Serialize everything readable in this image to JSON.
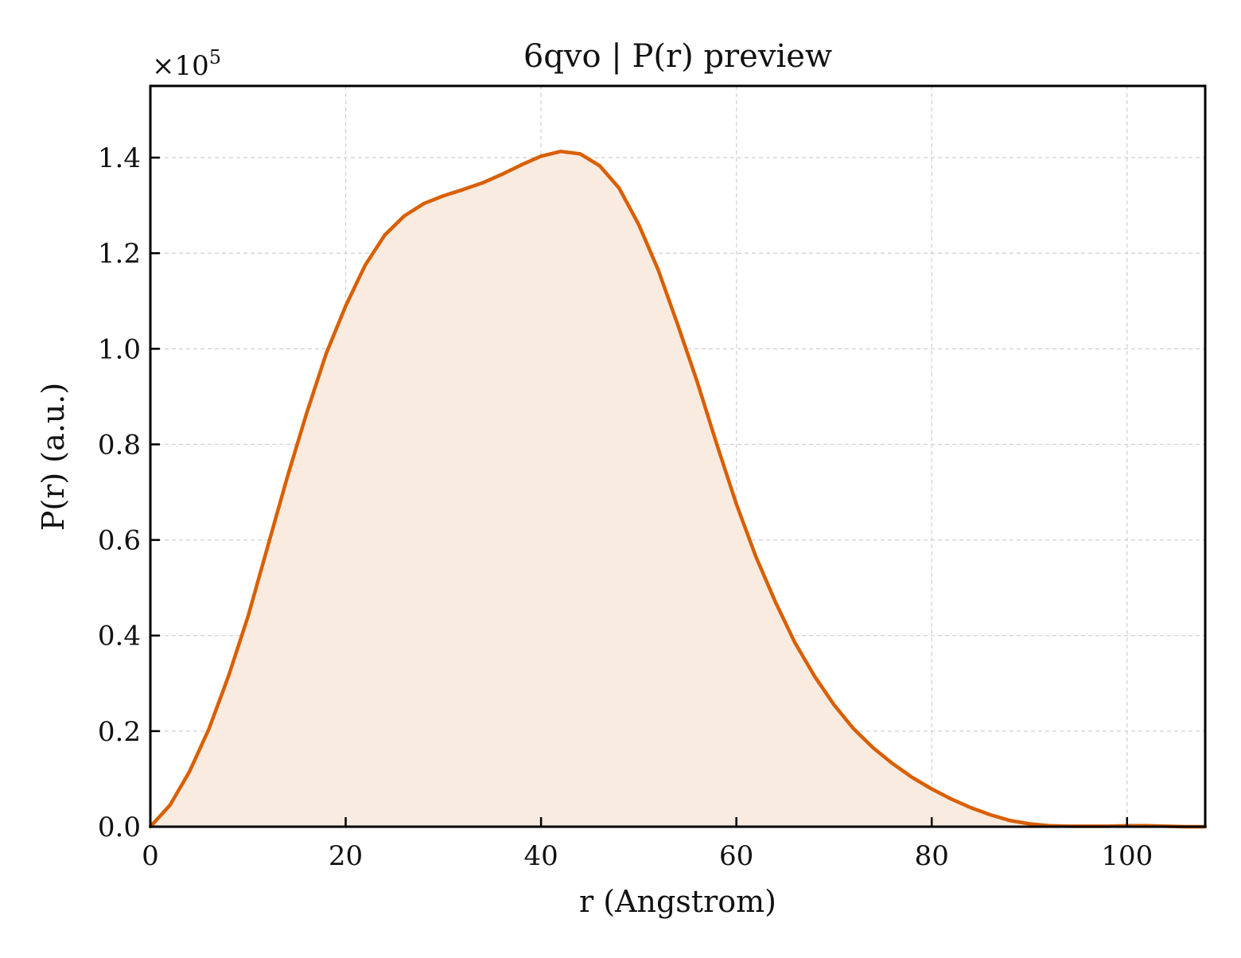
{
  "chart_data": {
    "type": "area",
    "title": "6qvo | P(r) preview",
    "xlabel": "r (Angstrom)",
    "ylabel": "P(r) (a.u.)",
    "y_multiplier": "×10",
    "y_multiplier_exp": "5",
    "xlim": [
      0,
      108
    ],
    "ylim": [
      0,
      1.55
    ],
    "x_ticks": [
      0,
      20,
      40,
      60,
      80,
      100
    ],
    "x_tick_labels": [
      "0",
      "20",
      "40",
      "60",
      "80",
      "100"
    ],
    "y_ticks": [
      0.0,
      0.2,
      0.4,
      0.6,
      0.8,
      1.0,
      1.2,
      1.4
    ],
    "y_tick_labels": [
      "0.0",
      "0.2",
      "0.4",
      "0.6",
      "0.8",
      "1.0",
      "1.2",
      "1.4"
    ],
    "grid": true,
    "line_color": "#d95f02",
    "fill_color": "#f9ebe0",
    "series": [
      {
        "x": [
          0,
          2,
          4,
          6,
          8,
          10,
          12,
          14,
          16,
          18,
          20,
          22,
          24,
          26,
          28,
          30,
          32,
          34,
          36,
          38,
          40,
          42,
          44,
          46,
          48,
          50,
          52,
          54,
          56,
          58,
          60,
          62,
          64,
          66,
          68,
          70,
          72,
          74,
          76,
          78,
          80,
          82,
          84,
          86,
          88,
          90,
          92,
          94,
          96,
          98,
          100,
          102,
          104,
          106,
          108
        ],
        "y": [
          0.0,
          0.045,
          0.115,
          0.205,
          0.315,
          0.44,
          0.585,
          0.73,
          0.865,
          0.99,
          1.09,
          1.175,
          1.238,
          1.278,
          1.304,
          1.32,
          1.333,
          1.347,
          1.365,
          1.385,
          1.403,
          1.413,
          1.408,
          1.383,
          1.336,
          1.26,
          1.165,
          1.05,
          0.93,
          0.8,
          0.675,
          0.565,
          0.47,
          0.385,
          0.315,
          0.255,
          0.205,
          0.165,
          0.132,
          0.103,
          0.079,
          0.058,
          0.04,
          0.025,
          0.013,
          0.006,
          0.002,
          0.001,
          0.001,
          0.001,
          0.002,
          0.002,
          0.001,
          0.0,
          0.0
        ]
      }
    ]
  }
}
